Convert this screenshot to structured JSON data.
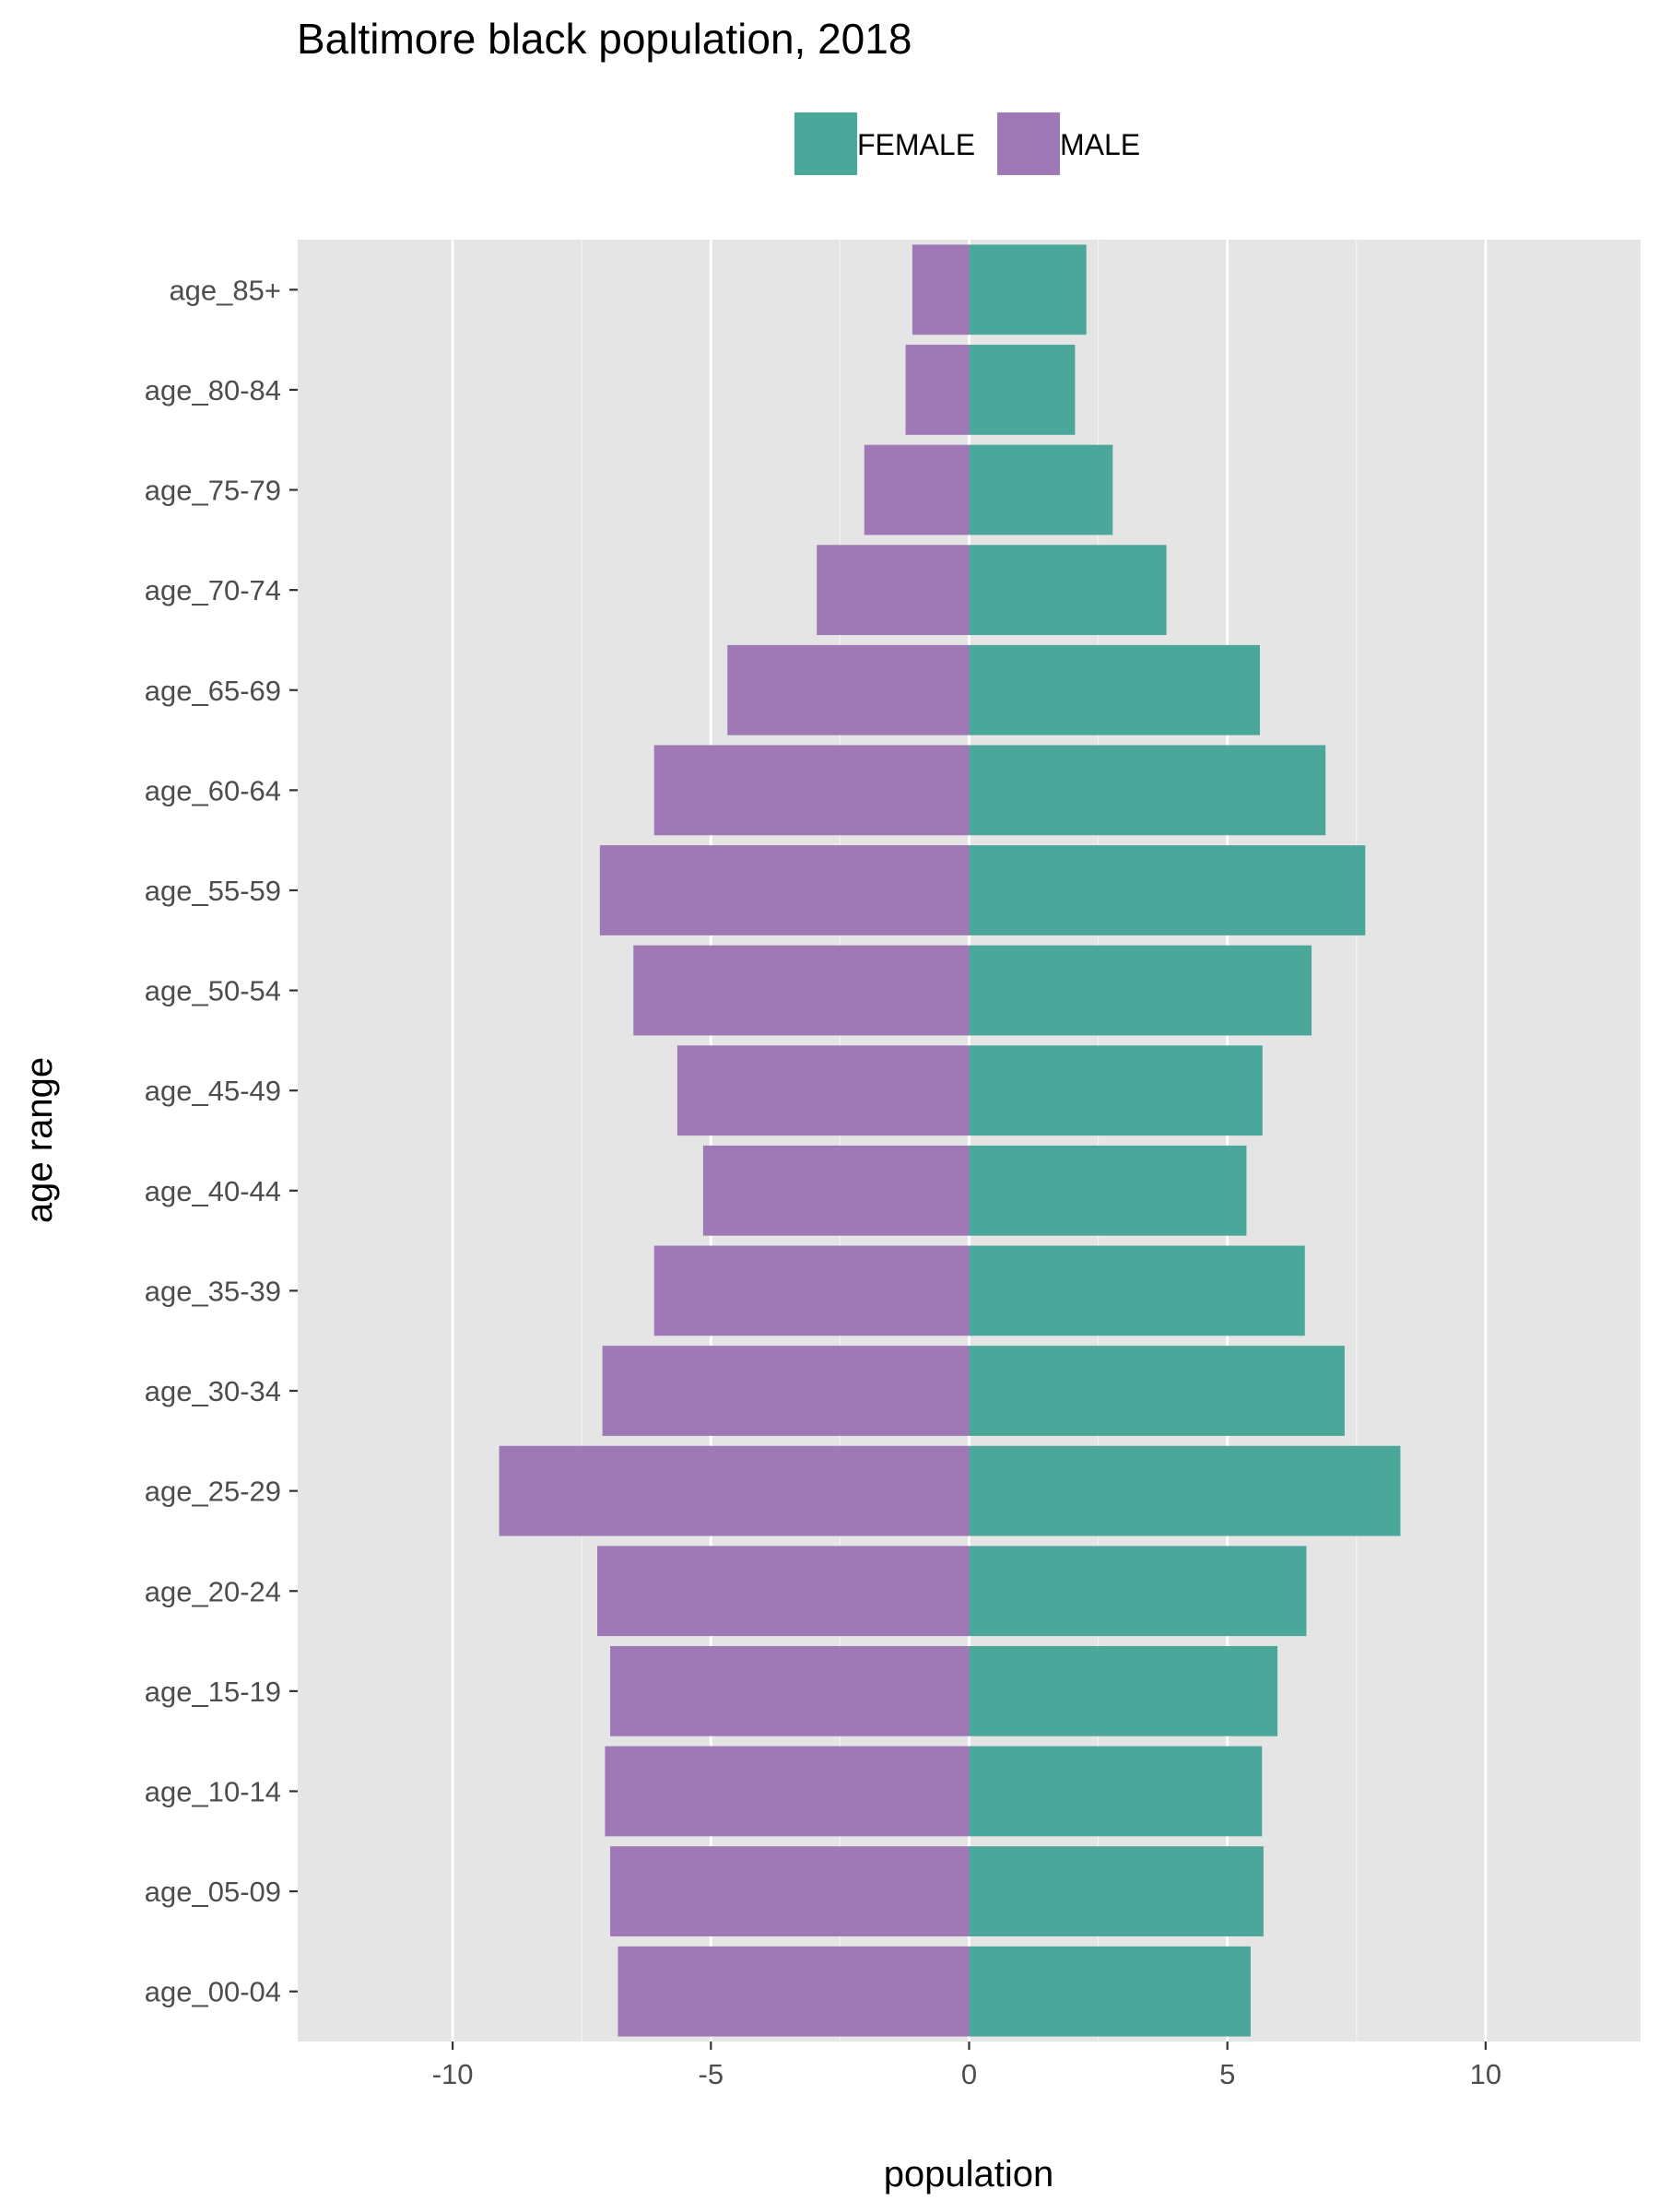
{
  "chart_data": {
    "type": "bar",
    "orientation": "horizontal",
    "title": "Baltimore black population, 2018",
    "xlabel": "population",
    "ylabel": "age range",
    "xlim": [
      -13,
      13
    ],
    "xticks": [
      -10,
      -5,
      0,
      5,
      10
    ],
    "grid": true,
    "legend_position": "top",
    "categories": [
      "age_00-04",
      "age_05-09",
      "age_10-14",
      "age_15-19",
      "age_20-24",
      "age_25-29",
      "age_30-34",
      "age_35-39",
      "age_40-44",
      "age_45-49",
      "age_50-54",
      "age_55-59",
      "age_60-64",
      "age_65-69",
      "age_70-74",
      "age_75-79",
      "age_80-84",
      "age_85+"
    ],
    "series": [
      {
        "name": "FEMALE",
        "color": "#4ca79b",
        "values": [
          5.45,
          5.7,
          5.67,
          5.97,
          6.53,
          8.35,
          7.27,
          6.5,
          5.37,
          5.68,
          6.63,
          7.67,
          6.9,
          5.63,
          3.82,
          2.78,
          2.05,
          2.27
        ]
      },
      {
        "name": "MALE",
        "color": "#9e79b5",
        "values": [
          -6.8,
          -6.95,
          -7.05,
          -6.95,
          -7.2,
          -9.1,
          -7.1,
          -6.1,
          -5.15,
          -5.65,
          -6.5,
          -7.15,
          -6.1,
          -4.68,
          -2.95,
          -2.03,
          -1.23,
          -1.1
        ]
      }
    ]
  }
}
